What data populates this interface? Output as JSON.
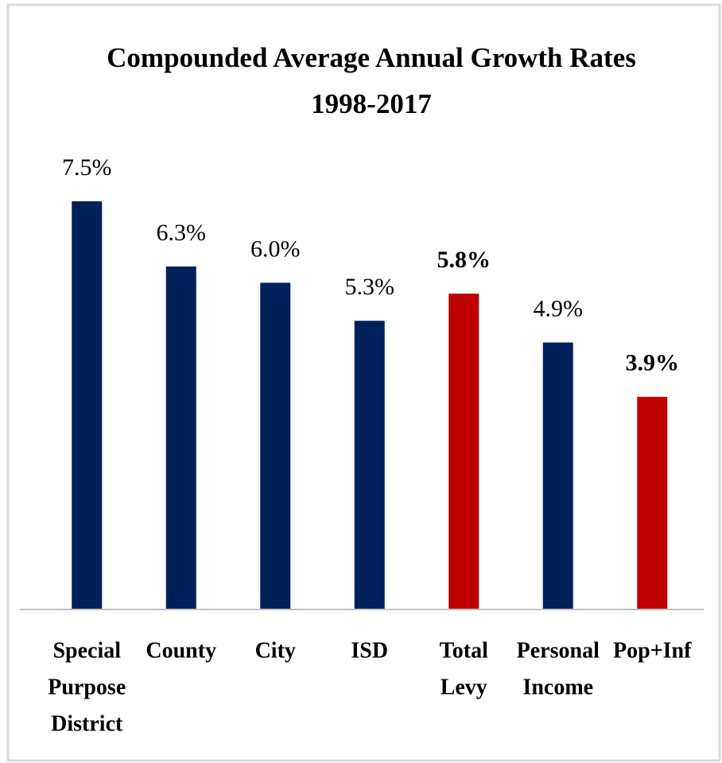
{
  "chart_data": {
    "type": "bar",
    "title": "Compounded Average Annual Growth Rates",
    "subtitle": "1998-2017",
    "categories": [
      [
        "Special",
        "Purpose",
        "District"
      ],
      [
        "County"
      ],
      [
        "City"
      ],
      [
        "ISD"
      ],
      [
        "Total",
        "Levy"
      ],
      [
        "Personal",
        "Income"
      ],
      [
        "Pop+Inf"
      ]
    ],
    "values": [
      7.5,
      6.3,
      6.0,
      5.3,
      5.8,
      4.9,
      3.9
    ],
    "value_labels": [
      "7.5%",
      "6.3%",
      "6.0%",
      "5.3%",
      "5.8%",
      "4.9%",
      "3.9%"
    ],
    "value_label_bold": [
      false,
      false,
      false,
      false,
      true,
      false,
      true
    ],
    "colors": [
      "#00205b",
      "#00205b",
      "#00205b",
      "#00205b",
      "#c00000",
      "#00205b",
      "#c00000"
    ]
  }
}
